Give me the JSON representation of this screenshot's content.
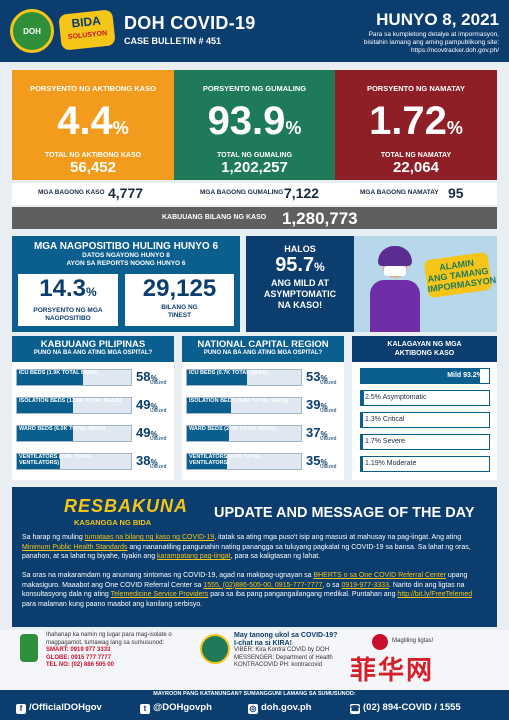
{
  "header": {
    "title": "DOH COVID-19",
    "bulletin": "CASE BULLETIN # 451",
    "date": "HUNYO 8, 2021",
    "note_1": "Para sa kumpletong detalye at impormasyon,",
    "note_2": "bisitahin lamang ang aming pampublikong site:",
    "note_3": "https://ncovtracker.doh.gov.ph/",
    "seal_text": "DOH",
    "bida_logo": "BIDA",
    "bida_logo_sub": "SOLUSYON"
  },
  "active": {
    "label": "PORSYENTO NG AKTIBONG KASO",
    "pct": "4.4",
    "unit": "%",
    "total_label": "TOTAL NG AKTIBONG KASO",
    "total": "56,452",
    "color": "#f29b1c"
  },
  "recovered": {
    "label": "PORSYENTO NG GUMALING",
    "pct": "93.9",
    "unit": "%",
    "total_label": "TOTAL NG GUMALING",
    "total": "1,202,257",
    "color": "#1e7a58"
  },
  "deaths": {
    "label": "PORSYENTO NG NAMATAY",
    "pct": "1.72",
    "unit": "%",
    "total_label": "TOTAL NG NAMATAY",
    "total": "22,064",
    "color": "#8f1f27"
  },
  "new_cases": {
    "cases_label": "MGA BAGONG KASO",
    "cases": "4,777",
    "recovered_label": "MGA BAGONG GUMALING",
    "recovered": "7,122",
    "deaths_label": "MGA BAGONG NAMATAY",
    "deaths": "95"
  },
  "total_cases": {
    "label": "KABUUANG BILANG NG KASO",
    "value": "1,280,773"
  },
  "positives": {
    "title": "MGA NAGPOSITIBO HULING HUNYO 6",
    "sub_1": "DATOS NGAYONG HUNYO 8",
    "sub_2": "AYON SA REPORTS NOONG HUNYO 6",
    "rate": "14.3",
    "rate_unit": "%",
    "rate_label_1": "PORSYENTO NG MGA",
    "rate_label_2": "NAGPOSITIBO",
    "tested": "29,125",
    "tested_label_1": "BILANG NG",
    "tested_label_2": "TINEST"
  },
  "asymptomatic": {
    "line_1": "HALOS",
    "pct": "95.7",
    "unit": "%",
    "line_2": "ANG MILD AT",
    "line_3": "ASYMPTOMATIC",
    "line_4": "NA KASO!"
  },
  "alamin": {
    "line_1": "ALAMIN",
    "line_2": "ANG TAMANG",
    "line_3": "IMPORMASYON"
  },
  "ph_util": {
    "title": "KABUUANG PILIPINAS",
    "subtitle": "PUNO NA BA ANG ATING MGA OSPITAL?",
    "utilized_label": "Utilized",
    "rows": [
      {
        "label": "ICU BEDS (1.9K TOTAL BEDS)",
        "pct": 58
      },
      {
        "label": "ISOLATION BEDS (13.6K TOTAL BEDS)",
        "pct": 49
      },
      {
        "label": "WARD BEDS (6.0K TOTAL BEDS)",
        "pct": 49
      },
      {
        "label": "VENTILATORS (2.0K TOTAL VENTILATORS)",
        "pct": 38
      }
    ]
  },
  "ncr_util": {
    "title": "NATIONAL CAPITAL REGION",
    "subtitle": "PUNO NA BA ANG ATING MGA OSPITAL?",
    "utilized_label": "Utilized",
    "rows": [
      {
        "label": "ICU BEDS (0.7K TOTAL BEDS)",
        "pct": 53
      },
      {
        "label": "ISOLATION BEDS (3.8K TOTAL BEDS)",
        "pct": 39
      },
      {
        "label": "WARD BEDS (2.2K TOTAL BEDS)",
        "pct": 37
      },
      {
        "label": "VENTILATORS (0.9K TOTAL VENTILATORS)",
        "pct": 35
      }
    ]
  },
  "case_status": {
    "title_1": "KALAGAYAN NG MGA",
    "title_2": "AKTIBONG KASO",
    "rows": [
      {
        "label": "Mild 93.2%",
        "pct": 93.2
      },
      {
        "label": "2.5% Asymptomatic",
        "pct": 2.5
      },
      {
        "label": "1.3% Critical",
        "pct": 1.3
      },
      {
        "label": "1.7% Severe",
        "pct": 1.7
      },
      {
        "label": "1.19% Moderate",
        "pct": 1.19
      }
    ]
  },
  "update": {
    "campaign": "RESBAKUNA",
    "campaign_sub": "KASANGGA NG BIDA",
    "title": "UPDATE AND MESSAGE OF THE DAY",
    "p1_a": "Sa harap ng muling ",
    "p1_link1": "tumataas na bilang ng kaso ng COVID-19",
    "p1_b": ", itatak sa ating mga puso't isip ang masusi at mahusay na pag-iingat. Ang ating ",
    "p1_link2": "Minimum Public Health Standards",
    "p1_c": " ang nananatiling pangunahin nating panangga sa tuluyang pagkalat ng COVID-19 sa bansa. Sa lahat ng oras, panahon, at sa lahat ng biyahe, tiyakin ang ",
    "p1_link3": "karampatang pag-iingat",
    "p1_d": ", para sa kaligtasan ng lahat.",
    "p2_a": "Sa oras na makaramdam ng anumang sintomas ng COVID-19, agad na makipag-ugnayan sa ",
    "p2_link1": "BHERTS o sa One COVID Referral Center",
    "p2_b": " upang makasiguro. Maaabot ang One COVID Referral Center sa ",
    "p2_link2": "1555, (02)886-505-00, 0915-777-7777",
    "p2_c": ", o sa ",
    "p2_link3": "0919-977-3333",
    "p2_d": ". Narito din ang ligtas na konsultasyong dala ng ating ",
    "p2_link4": "Telemedicine Service Providers",
    "p2_e": " para sa iba pang pangangailangang medikal. Puntahan ang ",
    "p2_link5": "http://bit.ly/FreeTelemed",
    "p2_f": " para malaman kung paano maabot ang kanilang serbisyo."
  },
  "contact": {
    "isolate_1": "Ihahanap ka namin ng lugar para mag-isolate o",
    "isolate_2": "magpagamot, tumawag lang sa sumusunod:",
    "smart": "SMART: 0919 977 3333",
    "globe": "GLOBE: 0915 777 7777",
    "telno": "TEL NO: (02) 886 505 00",
    "kira_q": "May tanong ukol sa COVID-19?",
    "kira_q2": "I-chat na si KIRA!",
    "viber": "VIBER: Kira Kontra COVID by DOH",
    "messenger": "MESSENGER: Department of Health",
    "kontracovid": "KONTRACOVID PH: kontracovid",
    "mk": "Magtiling ligtas!"
  },
  "watermark": "菲华网",
  "footer": {
    "ask": "MAYROON PANG KATANUNGAN? SUMANGGUNI LAMANG SA SUMUSUNOD:",
    "facebook": "/OfficialDOHgov",
    "twitter": "@DOHgovph",
    "web": "doh.gov.ph",
    "phone": "(02) 894-COVID / 1555"
  }
}
